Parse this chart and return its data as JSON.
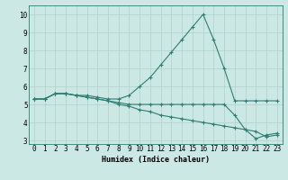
{
  "lines": [
    {
      "x": [
        0,
        1,
        2,
        3,
        4,
        5,
        6,
        7,
        8,
        9,
        10,
        11,
        12,
        13,
        14,
        15,
        16,
        17,
        18,
        19,
        20,
        21,
        22,
        23
      ],
      "y": [
        5.3,
        5.3,
        5.6,
        5.6,
        5.5,
        5.5,
        5.4,
        5.3,
        5.3,
        5.5,
        6.0,
        6.5,
        7.2,
        7.9,
        8.6,
        9.3,
        10.0,
        8.6,
        7.0,
        5.2,
        5.2,
        5.2,
        5.2,
        5.2
      ],
      "marker": "+"
    },
    {
      "x": [
        0,
        1,
        2,
        3,
        4,
        5,
        6,
        7,
        8,
        9,
        10,
        11,
        12,
        13,
        14,
        15,
        16,
        17,
        18,
        19,
        20,
        21,
        22,
        23
      ],
      "y": [
        5.3,
        5.3,
        5.6,
        5.6,
        5.5,
        5.4,
        5.3,
        5.2,
        5.1,
        5.0,
        5.0,
        5.0,
        5.0,
        5.0,
        5.0,
        5.0,
        5.0,
        5.0,
        5.0,
        4.4,
        3.6,
        3.1,
        3.3,
        3.4
      ],
      "marker": "+"
    },
    {
      "x": [
        0,
        1,
        2,
        3,
        4,
        5,
        6,
        7,
        8,
        9,
        10,
        11,
        12,
        13,
        14,
        15,
        16,
        17,
        18,
        19,
        20,
        21,
        22,
        23
      ],
      "y": [
        5.3,
        5.3,
        5.6,
        5.6,
        5.5,
        5.4,
        5.3,
        5.2,
        5.0,
        4.9,
        4.7,
        4.6,
        4.4,
        4.3,
        4.2,
        4.1,
        4.0,
        3.9,
        3.8,
        3.7,
        3.6,
        3.5,
        3.2,
        3.3
      ],
      "marker": "+"
    }
  ],
  "line_color": "#2e7d72",
  "bg_color": "#cce8e4",
  "grid_color": "#aed0cc",
  "xlabel": "Humidex (Indice chaleur)",
  "xlim": [
    -0.5,
    23.5
  ],
  "ylim": [
    2.8,
    10.5
  ],
  "yticks": [
    3,
    4,
    5,
    6,
    7,
    8,
    9,
    10
  ],
  "xticks": [
    0,
    1,
    2,
    3,
    4,
    5,
    6,
    7,
    8,
    9,
    10,
    11,
    12,
    13,
    14,
    15,
    16,
    17,
    18,
    19,
    20,
    21,
    22,
    23
  ],
  "xlabel_fontsize": 6.0,
  "tick_fontsize": 5.5
}
